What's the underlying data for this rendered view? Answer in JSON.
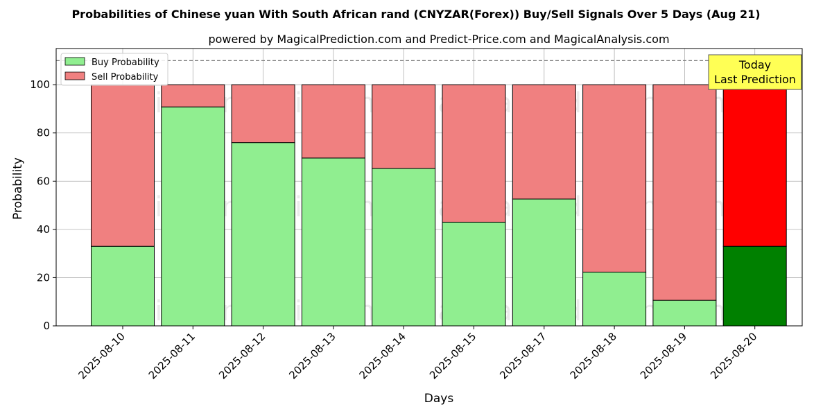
{
  "chart_data": {
    "type": "bar",
    "stacked": true,
    "title": "Probabilities of Chinese yuan With South African rand (CNYZAR(Forex)) Buy/Sell Signals Over 5 Days (Aug 21)",
    "subtitle": "powered by MagicalPrediction.com and Predict-Price.com and MagicalAnalysis.com",
    "xlabel": "Days",
    "ylabel": "Probability",
    "ylim": [
      0,
      115
    ],
    "yticks": [
      0,
      20,
      40,
      60,
      80,
      100
    ],
    "grid": true,
    "reference_line": 110,
    "categories": [
      "2025-08-10",
      "2025-08-11",
      "2025-08-12",
      "2025-08-13",
      "2025-08-14",
      "2025-08-15",
      "2025-08-17",
      "2025-08-18",
      "2025-08-19",
      "2025-08-20"
    ],
    "series": [
      {
        "name": "Buy Probability",
        "color": "#90ee90",
        "values": [
          33,
          90.8,
          76,
          69.6,
          65.3,
          43,
          52.6,
          22.3,
          10.6,
          33
        ]
      },
      {
        "name": "Sell Probability",
        "color": "#f08080",
        "values": [
          67,
          9.2,
          24,
          30.4,
          34.7,
          57,
          47.4,
          77.7,
          89.4,
          67
        ]
      }
    ],
    "highlight": {
      "index": 9,
      "buy_color": "#008000",
      "sell_color": "#ff0000"
    },
    "legend": {
      "position": "top-left",
      "entries": [
        "Buy Probability",
        "Sell Probability"
      ]
    },
    "annotation": {
      "lines": [
        "Today",
        "Last Prediction"
      ],
      "color": "#ffff55"
    },
    "watermarks": [
      "MagicalAnalysis.com",
      "MagicalPrediction.com"
    ]
  }
}
